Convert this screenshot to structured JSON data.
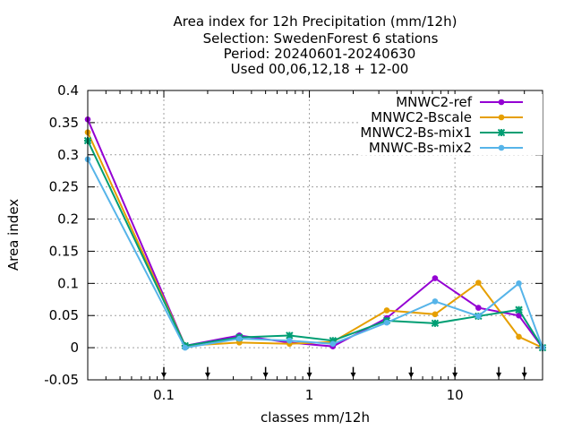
{
  "chart_data": {
    "type": "line",
    "title_lines": [
      "Area index  for 12h Precipitation (mm/12h)",
      "Selection: SwedenForest      6 stations",
      "Period: 20240601-20240630",
      "Used 00,06,12,18 + 12-00"
    ],
    "xlabel": "classes mm/12h",
    "ylabel": "Area index",
    "x_scale": "log",
    "xlim": [
      0.03,
      40
    ],
    "ylim": [
      -0.05,
      0.4
    ],
    "y_ticks": [
      -0.05,
      0,
      0.05,
      0.1,
      0.15,
      0.2,
      0.25,
      0.3,
      0.35,
      0.4
    ],
    "y_tick_labels": [
      "-0.05",
      "0",
      "0.05",
      "0.1",
      "0.15",
      "0.2",
      "0.25",
      "0.3",
      "0.35",
      "0.4"
    ],
    "x_ticks": [
      0.1,
      1,
      10
    ],
    "x_tick_labels": [
      "0.1",
      "1",
      "10"
    ],
    "class_limits": [
      0.1,
      0.2,
      0.5,
      1,
      2,
      5,
      10,
      20,
      30
    ],
    "grid": true,
    "legend_position": "top-right",
    "x": [
      0.03,
      0.14,
      0.33,
      0.73,
      1.45,
      3.4,
      7.3,
      14.5,
      27.5,
      40
    ],
    "series": [
      {
        "name": "MNWC2-ref",
        "color": "#9400d3",
        "marker": "circle",
        "values": [
          0.355,
          0.003,
          0.019,
          0.008,
          0.002,
          0.046,
          0.108,
          0.062,
          0.05,
          0.0
        ]
      },
      {
        "name": "MNWC2-Bscale",
        "color": "#e69f00",
        "marker": "circle",
        "values": [
          0.335,
          0.003,
          0.008,
          0.006,
          0.009,
          0.058,
          0.052,
          0.101,
          0.017,
          0.0
        ]
      },
      {
        "name": "MNWC2-Bs-mix1",
        "color": "#009e73",
        "marker": "cross",
        "values": [
          0.322,
          0.003,
          0.016,
          0.019,
          0.011,
          0.042,
          0.038,
          0.049,
          0.059,
          0.0
        ]
      },
      {
        "name": "MNWC-Bs-mix2",
        "color": "#56b4e9",
        "marker": "circle",
        "values": [
          0.293,
          0.0,
          0.014,
          0.011,
          0.006,
          0.039,
          0.072,
          0.049,
          0.1,
          0.0
        ]
      }
    ]
  }
}
